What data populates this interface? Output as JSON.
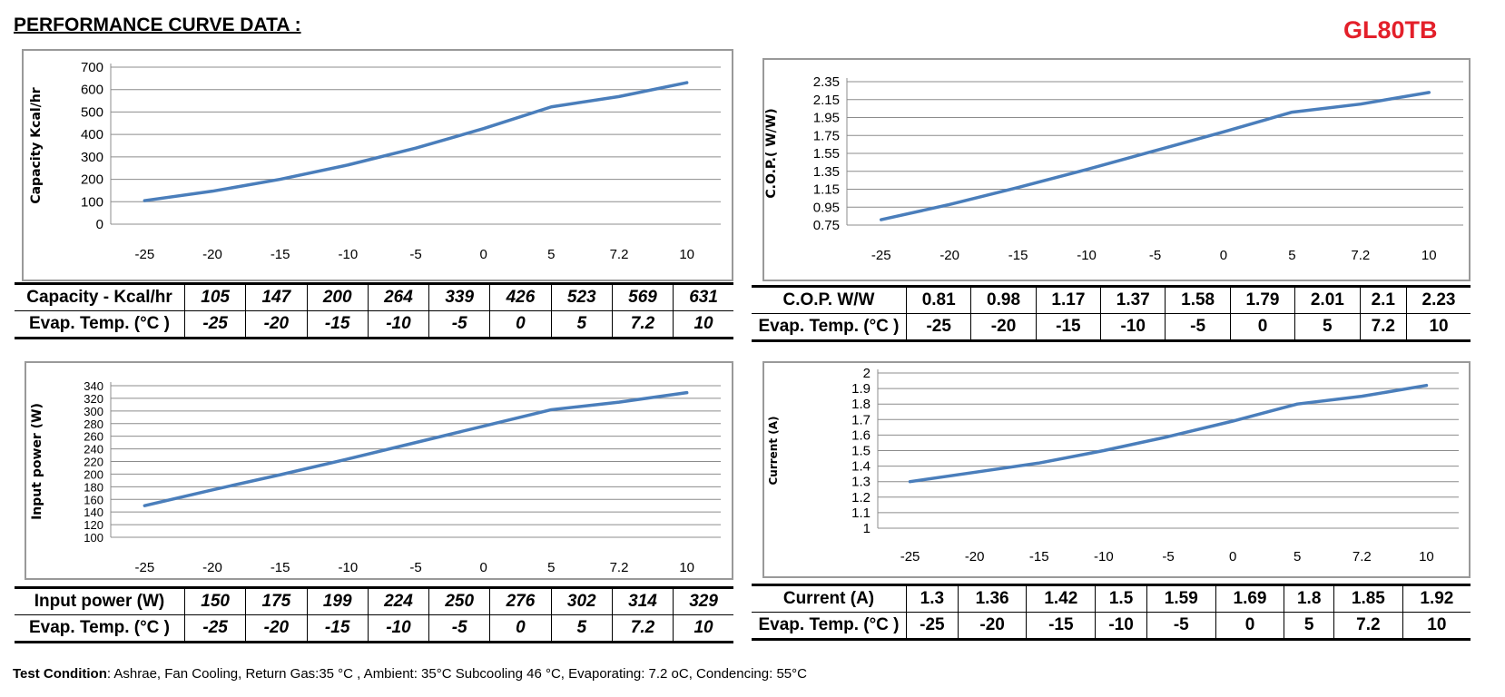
{
  "header": {
    "title": "PERFORMANCE CURVE DATA :",
    "model": "GL80TB",
    "model_color": "#e3202a"
  },
  "line_color": "#4a7ebb",
  "chart_data": [
    {
      "type": "line",
      "ylabel": "Capacity   Kcal/hr",
      "categories": [
        "-25",
        "-20",
        "-15",
        "-10",
        "-5",
        "0",
        "5",
        "7.2",
        "10"
      ],
      "values": [
        105,
        147,
        200,
        264,
        339,
        426,
        523,
        569,
        631
      ],
      "ylim": [
        0,
        700
      ],
      "yticks": [
        "0",
        "100",
        "200",
        "300",
        "400",
        "500",
        "600",
        "700"
      ],
      "grid": true
    },
    {
      "type": "line",
      "ylabel": "C.O.P.( W/W)",
      "categories": [
        "-25",
        "-20",
        "-15",
        "-10",
        "-5",
        "0",
        "5",
        "7.2",
        "10"
      ],
      "values": [
        0.81,
        0.98,
        1.17,
        1.37,
        1.58,
        1.79,
        2.01,
        2.1,
        2.23
      ],
      "ylim": [
        0.75,
        2.35
      ],
      "yticks": [
        "0.75",
        "0.95",
        "1.15",
        "1.35",
        "1.55",
        "1.75",
        "1.95",
        "2.15",
        "2.35"
      ],
      "grid": true
    },
    {
      "type": "line",
      "ylabel": "Input power   (W)",
      "categories": [
        "-25",
        "-20",
        "-15",
        "-10",
        "-5",
        "0",
        "5",
        "7.2",
        "10"
      ],
      "values": [
        150,
        175,
        199,
        224,
        250,
        276,
        302,
        314,
        329
      ],
      "ylim": [
        100,
        340
      ],
      "yticks": [
        "100",
        "120",
        "140",
        "160",
        "180",
        "200",
        "220",
        "240",
        "260",
        "280",
        "300",
        "320",
        "340"
      ],
      "grid": true
    },
    {
      "type": "line",
      "ylabel": "Current (A)",
      "categories": [
        "-25",
        "-20",
        "-15",
        "-10",
        "-5",
        "0",
        "5",
        "7.2",
        "10"
      ],
      "values": [
        1.3,
        1.36,
        1.42,
        1.5,
        1.59,
        1.69,
        1.8,
        1.85,
        1.92
      ],
      "ylim": [
        1,
        2
      ],
      "yticks": [
        "1",
        "1.1",
        "1.2",
        "1.3",
        "1.4",
        "1.5",
        "1.6",
        "1.7",
        "1.8",
        "1.9",
        "2"
      ],
      "grid": true
    }
  ],
  "tables": [
    {
      "row1_label": "Capacity - Kcal/hr",
      "row1": [
        "105",
        "147",
        "200",
        "264",
        "339",
        "426",
        "523",
        "569",
        "631"
      ],
      "row2_label": "Evap. Temp. (°C )",
      "row2": [
        "-25",
        "-20",
        "-15",
        "-10",
        "-5",
        "0",
        "5",
        "7.2",
        "10"
      ]
    },
    {
      "row1_label": "C.O.P. W/W",
      "row1": [
        "0.81",
        "0.98",
        "1.17",
        "1.37",
        "1.58",
        "1.79",
        "2.01",
        "2.1",
        "2.23"
      ],
      "row2_label": "Evap. Temp. (°C )",
      "row2": [
        "-25",
        "-20",
        "-15",
        "-10",
        "-5",
        "0",
        "5",
        "7.2",
        "10"
      ]
    },
    {
      "row1_label": "Input power (W)",
      "row1": [
        "150",
        "175",
        "199",
        "224",
        "250",
        "276",
        "302",
        "314",
        "329"
      ],
      "row2_label": "Evap. Temp. (°C )",
      "row2": [
        "-25",
        "-20",
        "-15",
        "-10",
        "-5",
        "0",
        "5",
        "7.2",
        "10"
      ]
    },
    {
      "row1_label": "Current (A)",
      "row1": [
        "1.3",
        "1.36",
        "1.42",
        "1.5",
        "1.59",
        "1.69",
        "1.8",
        "1.85",
        "1.92"
      ],
      "row2_label": "Evap. Temp. (°C )",
      "row2": [
        "-25",
        "-20",
        "-15",
        "-10",
        "-5",
        "0",
        "5",
        "7.2",
        "10"
      ]
    }
  ],
  "footer": {
    "label": "Test Condition",
    "text": ": Ashrae, Fan Cooling, Return Gas:35 °C , Ambient: 35°C Subcooling 46 °C, Evaporating: 7.2 oC, Condencing: 55°C"
  }
}
